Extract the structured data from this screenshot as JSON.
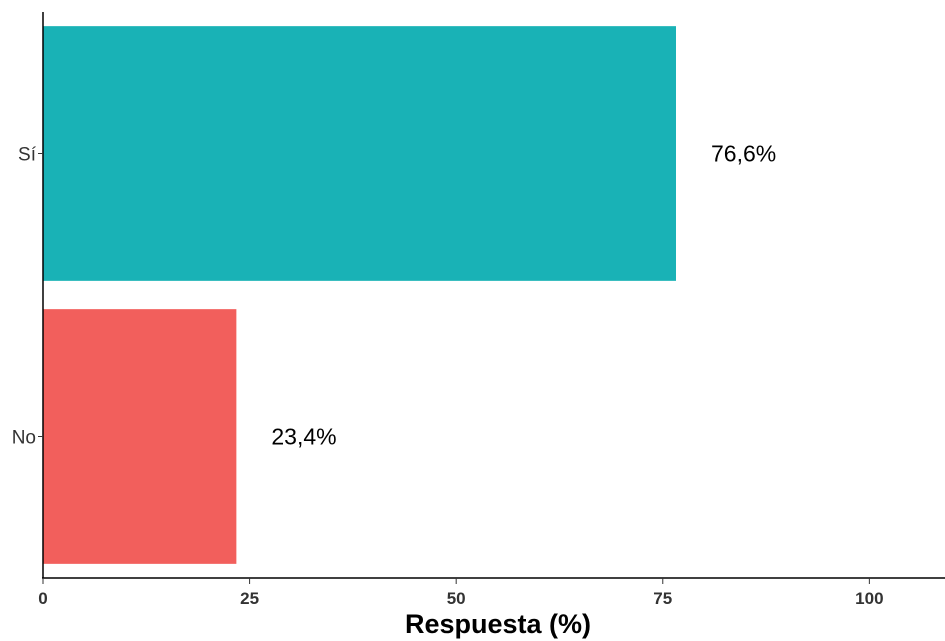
{
  "chart_data": {
    "type": "bar",
    "orientation": "horizontal",
    "categories": [
      "Sí",
      "No"
    ],
    "values": [
      76.6,
      23.4
    ],
    "value_labels": [
      "76,6%",
      "23,4%"
    ],
    "colors": [
      "#19B2B6",
      "#F25F5C"
    ],
    "xlabel": "Respuesta (%)",
    "ylabel": "",
    "xlim": [
      0,
      110
    ],
    "xticks": [
      0,
      25,
      50,
      75,
      100
    ],
    "xtick_labels": [
      "0",
      "25",
      "50",
      "75",
      "100"
    ],
    "grid": false,
    "legend": "none"
  }
}
